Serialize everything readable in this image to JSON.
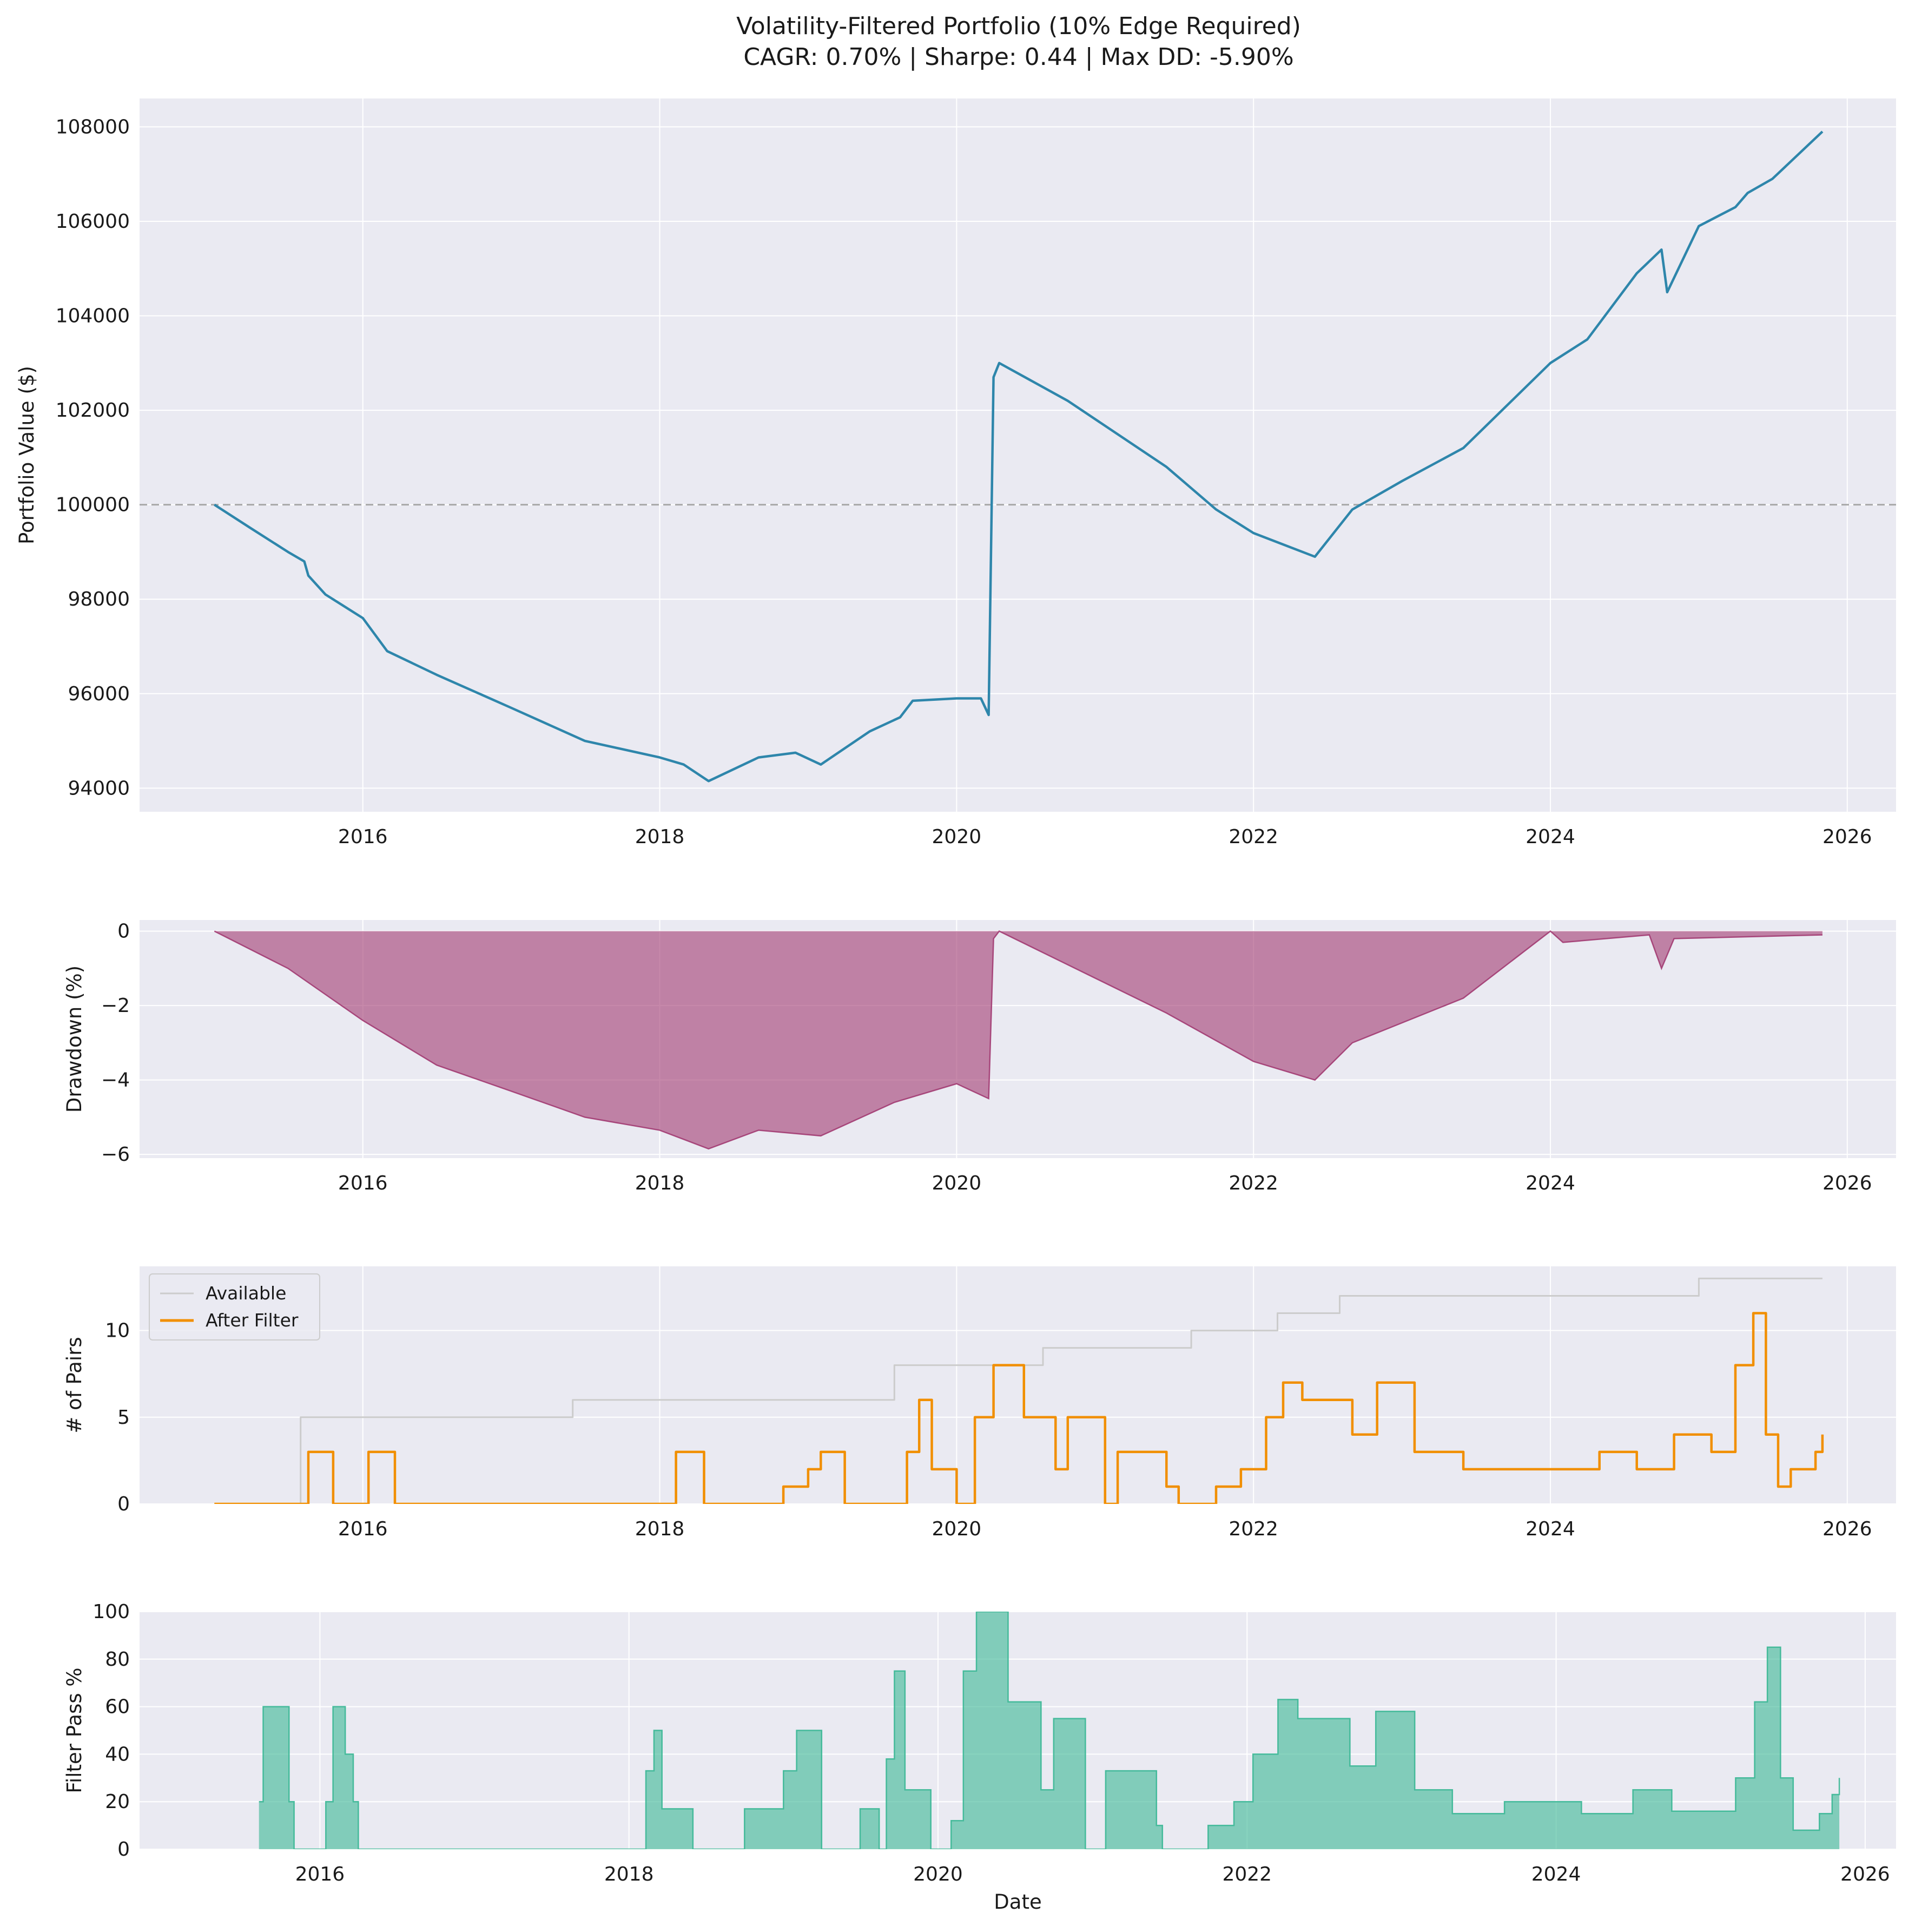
{
  "figure": {
    "title_line1": "Volatility-Filtered Portfolio (10% Edge Required)",
    "title_line2": "CAGR: 0.70% | Sharpe: 0.44 | Max DD: -5.90%",
    "background": "#eaeaf2",
    "grid_color": "#ffffff"
  },
  "chart_data": [
    {
      "type": "line",
      "ylabel": "Portfolio Value ($)",
      "xlabel": "",
      "xlim": [
        "2014-07-01",
        "2026-05-01"
      ],
      "ylim": [
        93500,
        108600
      ],
      "x_ticks": [
        "2016",
        "2018",
        "2020",
        "2022",
        "2024",
        "2026"
      ],
      "y_ticks": [
        "94000",
        "96000",
        "98000",
        "100000",
        "102000",
        "104000",
        "106000",
        "108000"
      ],
      "grid": true,
      "reference_line": {
        "y": 100000,
        "style": "dashed",
        "color": "#a9a9a9"
      },
      "series": [
        {
          "color": "#2e86ab",
          "points": [
            [
              "2015-01-01",
              100000
            ],
            [
              "2015-04-01",
              99500
            ],
            [
              "2015-07-01",
              99000
            ],
            [
              "2015-08-10",
              98800
            ],
            [
              "2015-08-20",
              98500
            ],
            [
              "2015-10-01",
              98100
            ],
            [
              "2016-01-01",
              97600
            ],
            [
              "2016-03-01",
              96900
            ],
            [
              "2016-07-01",
              96400
            ],
            [
              "2017-01-01",
              95700
            ],
            [
              "2017-07-01",
              95000
            ],
            [
              "2018-01-01",
              94650
            ],
            [
              "2018-03-01",
              94500
            ],
            [
              "2018-05-01",
              94150
            ],
            [
              "2018-09-01",
              94650
            ],
            [
              "2018-12-01",
              94750
            ],
            [
              "2019-02-01",
              94500
            ],
            [
              "2019-06-01",
              95200
            ],
            [
              "2019-08-15",
              95500
            ],
            [
              "2019-09-15",
              95850
            ],
            [
              "2020-01-01",
              95900
            ],
            [
              "2020-03-01",
              95900
            ],
            [
              "2020-03-20",
              95550
            ],
            [
              "2020-04-01",
              102700
            ],
            [
              "2020-04-15",
              103000
            ],
            [
              "2020-10-01",
              102200
            ],
            [
              "2021-06-01",
              100800
            ],
            [
              "2021-10-01",
              99900
            ],
            [
              "2022-01-01",
              99400
            ],
            [
              "2022-06-01",
              98900
            ],
            [
              "2022-09-01",
              99900
            ],
            [
              "2023-01-01",
              100500
            ],
            [
              "2023-06-01",
              101200
            ],
            [
              "2024-01-01",
              103000
            ],
            [
              "2024-04-01",
              103500
            ],
            [
              "2024-08-01",
              104900
            ],
            [
              "2024-10-01",
              105400
            ],
            [
              "2024-10-15",
              104500
            ],
            [
              "2025-01-01",
              105900
            ],
            [
              "2025-04-01",
              106300
            ],
            [
              "2025-05-01",
              106600
            ],
            [
              "2025-07-01",
              106900
            ],
            [
              "2025-11-01",
              107900
            ]
          ]
        }
      ]
    },
    {
      "type": "area",
      "ylabel": "Drawdown (%)",
      "xlabel": "",
      "xlim": [
        "2014-07-01",
        "2026-05-01"
      ],
      "ylim": [
        -6.1,
        0.3
      ],
      "x_ticks": [
        "2016",
        "2018",
        "2020",
        "2022",
        "2024",
        "2026"
      ],
      "y_ticks": [
        "−6",
        "−4",
        "−2",
        "0"
      ],
      "y_tick_values": [
        -6,
        -4,
        -2,
        0
      ],
      "grid": true,
      "series": [
        {
          "color": "#a23b72",
          "points": [
            [
              "2015-01-01",
              0
            ],
            [
              "2015-07-01",
              -1.0
            ],
            [
              "2016-01-01",
              -2.4
            ],
            [
              "2016-07-01",
              -3.6
            ],
            [
              "2017-01-01",
              -4.3
            ],
            [
              "2017-07-01",
              -5.0
            ],
            [
              "2018-01-01",
              -5.35
            ],
            [
              "2018-05-01",
              -5.85
            ],
            [
              "2018-09-01",
              -5.35
            ],
            [
              "2019-02-01",
              -5.5
            ],
            [
              "2019-08-01",
              -4.6
            ],
            [
              "2020-01-01",
              -4.1
            ],
            [
              "2020-03-20",
              -4.5
            ],
            [
              "2020-04-01",
              -0.2
            ],
            [
              "2020-04-15",
              0
            ],
            [
              "2021-06-01",
              -2.2
            ],
            [
              "2022-01-01",
              -3.5
            ],
            [
              "2022-06-01",
              -4.0
            ],
            [
              "2022-09-01",
              -3.0
            ],
            [
              "2023-06-01",
              -1.8
            ],
            [
              "2024-01-01",
              0
            ],
            [
              "2024-02-01",
              -0.3
            ],
            [
              "2024-09-01",
              -0.1
            ],
            [
              "2024-10-01",
              -1.0
            ],
            [
              "2024-11-01",
              -0.2
            ],
            [
              "2025-11-01",
              -0.1
            ]
          ]
        }
      ]
    },
    {
      "type": "line",
      "ylabel": "# of Pairs",
      "xlabel": "",
      "xlim": [
        "2014-07-01",
        "2026-05-01"
      ],
      "ylim": [
        0,
        13.7
      ],
      "x_ticks": [
        "2016",
        "2018",
        "2020",
        "2022",
        "2024",
        "2026"
      ],
      "y_ticks": [
        "0",
        "5",
        "10"
      ],
      "grid": true,
      "legend": "top-left",
      "series": [
        {
          "name": "Available",
          "color": "#cccccc",
          "steps": [
            [
              "2015-01-01",
              0
            ],
            [
              "2015-08-01",
              5
            ],
            [
              "2017-06-01",
              6
            ],
            [
              "2019-08-01",
              8
            ],
            [
              "2020-08-01",
              9
            ],
            [
              "2021-08-01",
              10
            ],
            [
              "2022-03-01",
              11
            ],
            [
              "2022-08-01",
              12
            ],
            [
              "2025-01-01",
              13
            ],
            [
              "2025-11-01",
              13
            ]
          ]
        },
        {
          "name": "After Filter",
          "color": "#f18f01",
          "steps": [
            [
              "2015-01-01",
              0
            ],
            [
              "2015-08-20",
              3
            ],
            [
              "2015-10-20",
              0
            ],
            [
              "2016-01-15",
              3
            ],
            [
              "2016-03-20",
              0
            ],
            [
              "2018-02-10",
              3
            ],
            [
              "2018-04-20",
              0
            ],
            [
              "2018-11-01",
              1
            ],
            [
              "2019-01-01",
              2
            ],
            [
              "2019-02-01",
              3
            ],
            [
              "2019-04-01",
              0
            ],
            [
              "2019-09-01",
              3
            ],
            [
              "2019-10-01",
              6
            ],
            [
              "2019-11-01",
              2
            ],
            [
              "2020-01-01",
              0
            ],
            [
              "2020-02-15",
              5
            ],
            [
              "2020-04-01",
              8
            ],
            [
              "2020-06-15",
              5
            ],
            [
              "2020-09-01",
              2
            ],
            [
              "2020-10-01",
              5
            ],
            [
              "2021-01-01",
              0
            ],
            [
              "2021-02-01",
              3
            ],
            [
              "2021-06-01",
              1
            ],
            [
              "2021-07-01",
              0
            ],
            [
              "2021-10-01",
              1
            ],
            [
              "2021-12-01",
              2
            ],
            [
              "2022-02-01",
              5
            ],
            [
              "2022-03-15",
              7
            ],
            [
              "2022-05-01",
              6
            ],
            [
              "2022-09-01",
              4
            ],
            [
              "2022-11-01",
              7
            ],
            [
              "2023-02-01",
              3
            ],
            [
              "2023-06-01",
              2
            ],
            [
              "2024-01-01",
              2
            ],
            [
              "2024-05-01",
              3
            ],
            [
              "2024-08-01",
              2
            ],
            [
              "2024-11-01",
              4
            ],
            [
              "2025-02-01",
              3
            ],
            [
              "2025-04-01",
              8
            ],
            [
              "2025-05-15",
              11
            ],
            [
              "2025-06-15",
              4
            ],
            [
              "2025-07-15",
              1
            ],
            [
              "2025-08-15",
              2
            ],
            [
              "2025-10-15",
              3
            ],
            [
              "2025-11-01",
              4
            ]
          ]
        }
      ]
    },
    {
      "type": "area",
      "ylabel": "Filter Pass %",
      "xlabel": "Date",
      "xlim": [
        "2014-11-01",
        "2026-03-15"
      ],
      "ylim": [
        0,
        100
      ],
      "x_ticks": [
        "2016",
        "2018",
        "2020",
        "2022",
        "2024",
        "2026"
      ],
      "y_ticks": [
        "0",
        "20",
        "40",
        "60",
        "80",
        "100"
      ],
      "grid": true,
      "series": [
        {
          "color": "#3ab795",
          "steps": [
            [
              "2015-08-10",
              20
            ],
            [
              "2015-08-20",
              60
            ],
            [
              "2015-10-20",
              20
            ],
            [
              "2015-11-01",
              0
            ],
            [
              "2016-01-15",
              20
            ],
            [
              "2016-02-01",
              60
            ],
            [
              "2016-03-01",
              40
            ],
            [
              "2016-03-20",
              20
            ],
            [
              "2016-04-01",
              0
            ],
            [
              "2018-02-10",
              33
            ],
            [
              "2018-03-01",
              50
            ],
            [
              "2018-03-20",
              17
            ],
            [
              "2018-06-01",
              0
            ],
            [
              "2018-10-01",
              17
            ],
            [
              "2019-01-01",
              33
            ],
            [
              "2019-02-01",
              50
            ],
            [
              "2019-04-01",
              0
            ],
            [
              "2019-07-01",
              17
            ],
            [
              "2019-08-15",
              0
            ],
            [
              "2019-09-01",
              38
            ],
            [
              "2019-09-20",
              75
            ],
            [
              "2019-10-15",
              25
            ],
            [
              "2019-12-15",
              0
            ],
            [
              "2020-02-01",
              12
            ],
            [
              "2020-03-01",
              75
            ],
            [
              "2020-04-01",
              100
            ],
            [
              "2020-06-15",
              62
            ],
            [
              "2020-09-01",
              25
            ],
            [
              "2020-10-01",
              55
            ],
            [
              "2020-12-15",
              0
            ],
            [
              "2021-02-01",
              33
            ],
            [
              "2021-06-01",
              10
            ],
            [
              "2021-06-15",
              0
            ],
            [
              "2021-10-01",
              10
            ],
            [
              "2021-12-01",
              20
            ],
            [
              "2022-01-15",
              40
            ],
            [
              "2022-03-15",
              63
            ],
            [
              "2022-05-01",
              55
            ],
            [
              "2022-09-01",
              35
            ],
            [
              "2022-11-01",
              58
            ],
            [
              "2023-02-01",
              25
            ],
            [
              "2023-05-01",
              15
            ],
            [
              "2023-09-01",
              20
            ],
            [
              "2024-03-01",
              15
            ],
            [
              "2024-07-01",
              25
            ],
            [
              "2024-10-01",
              16
            ],
            [
              "2025-03-01",
              30
            ],
            [
              "2025-04-15",
              62
            ],
            [
              "2025-05-15",
              85
            ],
            [
              "2025-06-15",
              30
            ],
            [
              "2025-07-15",
              8
            ],
            [
              "2025-09-15",
              15
            ],
            [
              "2025-10-15",
              23
            ],
            [
              "2025-11-01",
              30
            ]
          ]
        }
      ]
    }
  ]
}
